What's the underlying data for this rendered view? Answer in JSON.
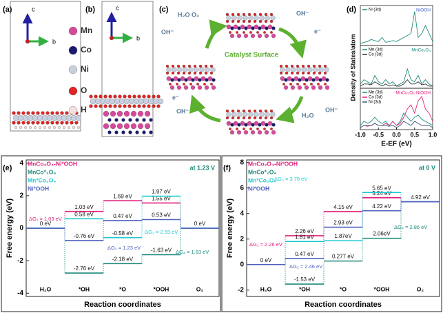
{
  "panels": {
    "labels": [
      "(a)",
      "(b)",
      "(c)"
    ],
    "axis_labels": [
      "c",
      "b",
      "c",
      "b"
    ],
    "elements": [
      "Mn",
      "Co",
      "Ni",
      "O",
      "H"
    ],
    "c": {
      "title": "Catalyst Surface",
      "species": [
        "H₂O O₂",
        "OH⁻",
        "OH⁻",
        "e⁻",
        "e⁻",
        "OH⁻",
        "H₂O",
        "OH⁻"
      ]
    }
  },
  "chart_data": [
    {
      "type": "line",
      "panel": "(d)",
      "ylabel": "Density of States/atom",
      "title": "NiOOH",
      "title_color": "#4060c0",
      "x": [
        -1.0,
        -0.9,
        -0.8,
        -0.7,
        -0.6,
        -0.5,
        -0.4,
        -0.3,
        -0.2,
        -0.1,
        0.0,
        0.1,
        0.2,
        0.3,
        0.4,
        0.5,
        0.6,
        0.7,
        0.8,
        0.9,
        1.0
      ],
      "xlim": [
        -1.0,
        1.0
      ],
      "ylim": [
        0,
        1
      ],
      "series": [
        {
          "name": "Ni (3d)",
          "color": "#1a8a7a",
          "values": [
            0.05,
            0.08,
            0.1,
            0.15,
            0.12,
            0.1,
            0.2,
            0.08,
            0.1,
            0.12,
            0.1,
            0.15,
            0.2,
            0.25,
            0.3,
            0.85,
            0.2,
            0.3,
            0.5,
            0.3,
            0.1
          ]
        }
      ]
    },
    {
      "type": "line",
      "title": "MnCo₂O₄",
      "title_color": "#1a8a7a",
      "x": [
        -1.0,
        -0.9,
        -0.8,
        -0.7,
        -0.6,
        -0.5,
        -0.4,
        -0.3,
        -0.2,
        -0.1,
        0.0,
        0.1,
        0.2,
        0.3,
        0.4,
        0.5,
        0.6,
        0.7,
        0.8,
        0.9,
        1.0
      ],
      "xlim": [
        -1.0,
        1.0
      ],
      "ylim": [
        0,
        1
      ],
      "series": [
        {
          "name": "Mn (3d)",
          "color": "#1a8a7a",
          "values": [
            0.1,
            0.2,
            0.15,
            0.1,
            0.3,
            0.15,
            0.1,
            0.2,
            0.1,
            0.15,
            0.05,
            0.1,
            0.15,
            0.45,
            0.2,
            0.15,
            0.3,
            0.1,
            0.2,
            0.1,
            0.05
          ]
        },
        {
          "name": "Co (3d)",
          "color": "#333333",
          "values": [
            0.05,
            0.1,
            0.1,
            0.08,
            0.15,
            0.1,
            0.05,
            0.1,
            0.05,
            0.08,
            0.05,
            0.05,
            0.1,
            0.2,
            0.1,
            0.1,
            0.15,
            0.08,
            0.1,
            0.05,
            0.05
          ]
        }
      ]
    },
    {
      "type": "line",
      "title": "MnCo₂O₄-NiOOH",
      "title_color": "#e0207a",
      "xlabel": "E-EF (eV)",
      "x": [
        -1.0,
        -0.9,
        -0.8,
        -0.7,
        -0.6,
        -0.5,
        -0.4,
        -0.3,
        -0.2,
        -0.1,
        0.0,
        0.1,
        0.2,
        0.3,
        0.4,
        0.5,
        0.6,
        0.7,
        0.8,
        0.9,
        1.0
      ],
      "xlim": [
        -1.0,
        1.0
      ],
      "ylim": [
        0,
        1
      ],
      "xticks": [
        {
          "value": -1.0,
          "label": "-1.0"
        },
        -0.5,
        {
          "value": 0.0,
          "label": "0.0"
        },
        0.5,
        {
          "value": 1.0,
          "label": "1.0"
        }
      ],
      "series": [
        {
          "name": "Mn (3d)",
          "color": "#1a8a7a",
          "values": [
            0.1,
            0.2,
            0.15,
            0.2,
            0.3,
            0.2,
            0.15,
            0.2,
            0.1,
            0.2,
            0.1,
            0.2,
            0.4,
            0.3,
            0.2,
            0.3,
            0.35,
            0.25,
            0.2,
            0.15,
            0.1
          ]
        },
        {
          "name": "Co (3d)",
          "color": "#e0207a",
          "values": [
            0.05,
            0.1,
            0.08,
            0.1,
            0.15,
            0.1,
            0.1,
            0.15,
            0.1,
            0.2,
            0.1,
            0.15,
            0.3,
            0.5,
            0.6,
            0.4,
            0.7,
            0.8,
            0.5,
            0.4,
            0.2
          ]
        },
        {
          "name": "Ni (3d)",
          "color": "#3a5a7a",
          "values": [
            0.05,
            0.1,
            0.1,
            0.1,
            0.15,
            0.1,
            0.1,
            0.1,
            0.08,
            0.1,
            0.05,
            0.1,
            0.2,
            0.15,
            0.1,
            0.2,
            0.15,
            0.1,
            0.1,
            0.1,
            0.05
          ]
        }
      ]
    },
    {
      "type": "step",
      "panel": "(e)",
      "condition": "at 1.23 V",
      "ylabel": "Free energy (eV)",
      "xlabel": "Reaction coordinates",
      "categories": [
        "H₂O",
        "*OH",
        "*O",
        "*OOH",
        "O₂"
      ],
      "ylim": [
        -4.2,
        4.2
      ],
      "yticks": [
        4,
        2,
        0,
        -2,
        -4
      ],
      "series": [
        {
          "name": "MnCo₂O₄-Ni*OOH",
          "color": "#e0207a",
          "values": [
            0,
            1.03,
            1.69,
            1.55,
            0
          ],
          "value_labels": [
            "0 eV",
            "1.03 eV",
            "1.69 eV",
            "1.55 eV",
            "0 eV"
          ]
        },
        {
          "name": "MnCo*₂O₄",
          "color": "#1a8a7a",
          "values": [
            0,
            -2.76,
            -2.18,
            -1.63,
            0
          ],
          "value_labels": [
            null,
            "-2.76 eV",
            "-2.18 eV",
            "-1.63 eV",
            null
          ]
        },
        {
          "name": "Mn*Co₂O₄",
          "color": "#20c8d0",
          "values": [
            0,
            0.58,
            -0.58,
            1.97,
            0
          ],
          "value_labels": [
            null,
            "0.58 eV",
            "-0.58 eV",
            "1.97 eV",
            null
          ]
        },
        {
          "name": "Ni*OOH",
          "color": "#5060c0",
          "values": [
            0,
            -0.76,
            0.47,
            0.53,
            0
          ],
          "value_labels": [
            null,
            "-0.76 eV",
            "0.47 eV",
            "0.53 eV",
            null
          ]
        }
      ],
      "annotations": [
        {
          "text": "ΔG₁ = 1.03 eV",
          "color": "#e0207a"
        },
        {
          "text": "ΔG₂ = 1.23 eV",
          "color": "#5060c0"
        },
        {
          "text": "ΔG₃ = 2.55 eV",
          "color": "#20c8d0"
        },
        {
          "text": "ΔG₄ = 1.63 eV",
          "color": "#1a8a7a"
        }
      ]
    },
    {
      "type": "step",
      "panel": "(f)",
      "condition": "at 0 V",
      "ylabel": "Free energy (eV)",
      "xlabel": "Reaction coordinates",
      "categories": [
        "H₂O",
        "*OH",
        "*O",
        "*OOH",
        "O₂"
      ],
      "ylim": [
        -2.5,
        8.2
      ],
      "yticks": [
        8,
        6,
        4,
        2,
        0,
        -2
      ],
      "series": [
        {
          "name": "MnCo₂O₄-Ni*OOH",
          "color": "#e0207a",
          "values": [
            0,
            2.26,
            4.15,
            5.24,
            4.92
          ],
          "value_labels": [
            "0 eV",
            "2.26 eV",
            "4.15 eV",
            "5.24 eV",
            "4.92 eV"
          ]
        },
        {
          "name": "MnCo*₂O₄",
          "color": "#1a8a7a",
          "values": [
            0,
            -1.53,
            0.277,
            2.06,
            4.92
          ],
          "value_labels": [
            null,
            "-1.53 eV",
            "0.277 eV",
            "2.06eV",
            null
          ]
        },
        {
          "name": "Mn*Co₂O₄",
          "color": "#20c8d0",
          "values": [
            0,
            1.81,
            1.87,
            5.65,
            4.92
          ],
          "value_labels": [
            null,
            "1.81 eV",
            "1.87eV",
            "5.65 eV",
            null
          ]
        },
        {
          "name": "Ni*OOH",
          "color": "#5060c0",
          "values": [
            0,
            0.47,
            2.93,
            4.22,
            4.92
          ],
          "value_labels": [
            null,
            "0.47 eV",
            "2.93 eV",
            "4.22 eV",
            null
          ]
        }
      ],
      "annotations": [
        {
          "text": "ΔG₁ = 2.26 eV",
          "color": "#e0207a"
        },
        {
          "text": "ΔG₂ = 2.46 eV",
          "color": "#5060c0"
        },
        {
          "text": "ΔG₃ = 3.78 eV",
          "color": "#20c8d0"
        },
        {
          "text": "ΔG₄ = 2.86 eV",
          "color": "#1a8a7a"
        }
      ]
    }
  ]
}
